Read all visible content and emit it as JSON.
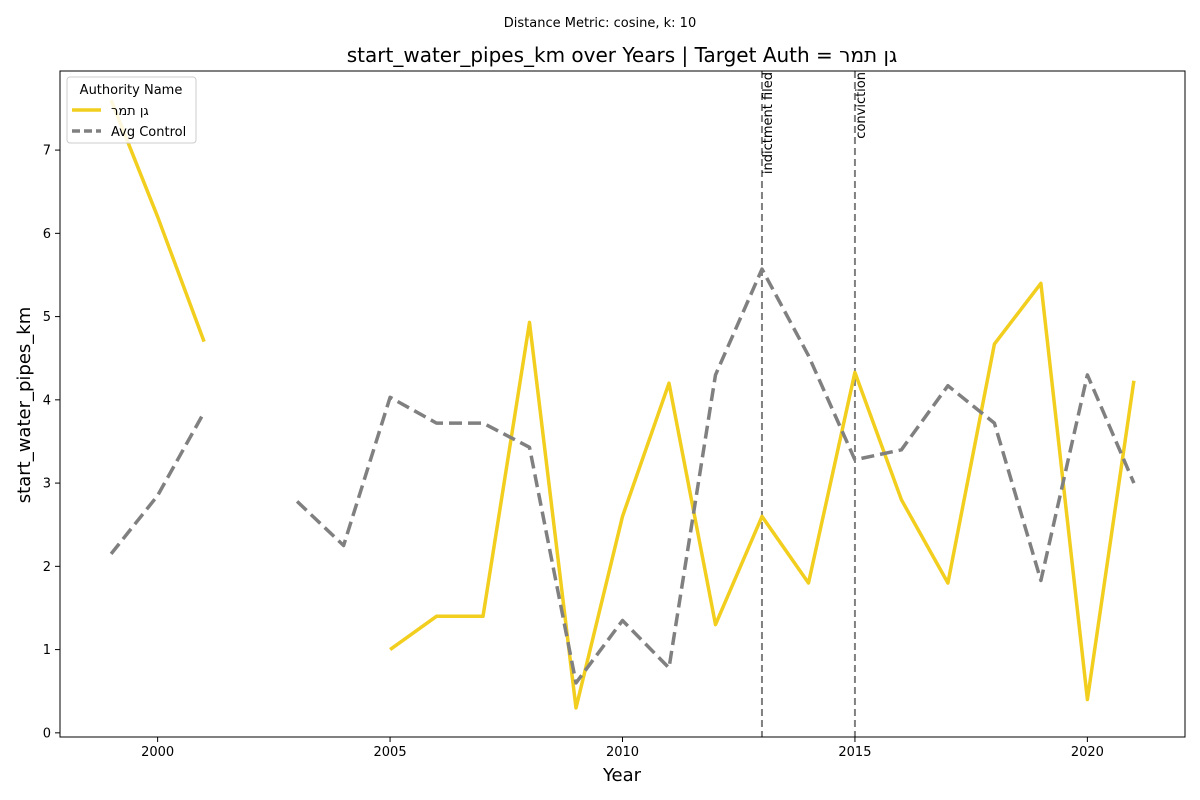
{
  "chart_data": {
    "type": "line",
    "suptitle": "Distance Metric: cosine, k: 10",
    "title": "start_water_pipes_km over Years | Target Auth = גן תמר",
    "xlabel": "Year",
    "ylabel": "start_water_pipes_km",
    "xlim": [
      1997.9,
      2022.1
    ],
    "ylim": [
      -0.05,
      7.95
    ],
    "xticks": [
      2000,
      2005,
      2010,
      2015,
      2020
    ],
    "yticks": [
      0,
      1,
      2,
      3,
      4,
      5,
      6,
      7
    ],
    "grid": false,
    "legend": {
      "title": "Authority Name",
      "placement": "top-left"
    },
    "x": [
      1999,
      2000,
      2001,
      2002,
      2003,
      2004,
      2005,
      2006,
      2007,
      2008,
      2009,
      2010,
      2011,
      2012,
      2013,
      2014,
      2015,
      2016,
      2017,
      2018,
      2019,
      2020,
      2021
    ],
    "series": [
      {
        "name": "גן תמר",
        "color": "#f2ce1e",
        "dash": "solid",
        "values": [
          7.6,
          6.2,
          4.7,
          null,
          null,
          null,
          1.0,
          1.4,
          1.4,
          4.93,
          0.3,
          2.6,
          4.2,
          1.3,
          2.6,
          1.8,
          4.33,
          2.8,
          1.8,
          4.67,
          5.4,
          0.4,
          4.23
        ]
      },
      {
        "name": "Avg Control",
        "color": "#808080",
        "dash": "dashed",
        "values": [
          2.15,
          2.85,
          3.85,
          null,
          2.78,
          2.25,
          4.03,
          3.72,
          3.72,
          3.43,
          0.6,
          1.35,
          0.78,
          4.3,
          5.57,
          4.53,
          3.28,
          3.4,
          4.17,
          3.72,
          1.83,
          4.3,
          3.0
        ]
      }
    ],
    "events": [
      {
        "x": 2013,
        "label": "indictment filed"
      },
      {
        "x": 2015,
        "label": "conviction"
      }
    ]
  }
}
